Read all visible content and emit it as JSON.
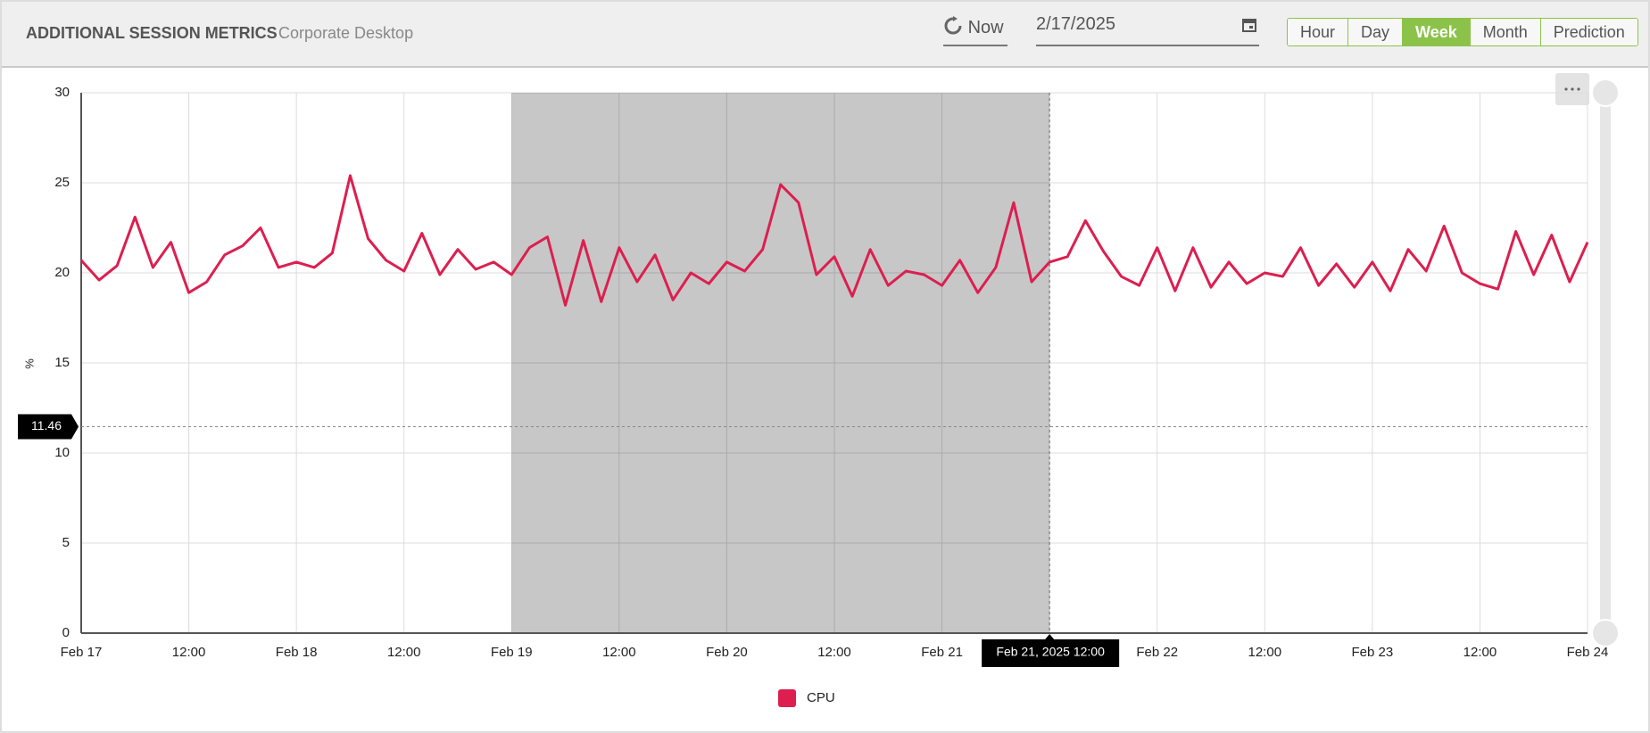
{
  "header": {
    "title": "ADDITIONAL SESSION METRICS",
    "subtitle": "Corporate Desktop",
    "refresh_label": "Now",
    "date": "2/17/2025",
    "range_buttons": [
      "Hour",
      "Day",
      "Week",
      "Month",
      "Prediction"
    ],
    "active_range": "Week"
  },
  "chart_data": {
    "type": "line",
    "y_label": "%",
    "x": [
      0,
      2,
      4,
      6,
      8,
      10,
      12,
      14,
      16,
      18,
      20,
      22,
      24,
      26,
      28,
      30,
      32,
      34,
      36,
      38,
      40,
      42,
      44,
      46,
      48,
      50,
      52,
      54,
      56,
      58,
      60,
      62,
      64,
      66,
      68,
      70,
      72,
      74,
      76,
      78,
      80,
      82,
      84,
      86,
      88,
      90,
      92,
      94,
      96,
      98,
      100,
      102,
      104,
      106,
      108,
      110,
      112,
      114,
      116,
      118,
      120,
      122,
      124,
      126,
      128,
      130,
      132,
      134,
      136,
      138,
      140,
      142,
      144,
      146,
      148,
      150,
      152,
      154,
      156,
      158,
      160,
      162,
      164,
      166,
      168
    ],
    "series": [
      {
        "name": "CPU",
        "color": "#dc1f4f",
        "values": [
          20.7,
          19.6,
          20.4,
          23.1,
          20.3,
          21.7,
          18.9,
          19.5,
          21.0,
          21.5,
          22.5,
          20.3,
          20.6,
          20.3,
          21.1,
          25.4,
          21.9,
          20.7,
          20.1,
          22.2,
          19.9,
          21.3,
          20.2,
          20.6,
          19.9,
          21.4,
          22.0,
          18.2,
          21.8,
          18.4,
          21.4,
          19.5,
          21.0,
          18.5,
          20.0,
          19.4,
          20.6,
          20.1,
          21.3,
          24.9,
          23.9,
          19.9,
          20.9,
          18.7,
          21.3,
          19.3,
          20.1,
          19.9,
          19.3,
          20.7,
          18.9,
          20.3,
          23.9,
          19.5,
          20.6,
          20.9,
          22.9,
          21.2,
          19.8,
          19.3,
          21.4,
          19.0,
          21.4,
          19.2,
          20.6,
          19.4,
          20.0,
          19.8,
          21.4,
          19.3,
          20.5,
          19.2,
          20.6,
          19.0,
          21.3,
          20.1,
          22.6,
          20.0,
          19.4,
          19.1,
          22.3,
          19.9,
          22.1,
          19.5,
          21.7
        ]
      }
    ],
    "xlim": [
      0,
      168
    ],
    "xticks": [
      {
        "value": 0,
        "label": "Feb 17"
      },
      {
        "value": 12,
        "label": "12:00"
      },
      {
        "value": 24,
        "label": "Feb 18"
      },
      {
        "value": 36,
        "label": "12:00"
      },
      {
        "value": 48,
        "label": "Feb 19"
      },
      {
        "value": 60,
        "label": "12:00"
      },
      {
        "value": 72,
        "label": "Feb 20"
      },
      {
        "value": 84,
        "label": "12:00"
      },
      {
        "value": 96,
        "label": "Feb 21"
      },
      {
        "value": 108,
        "label": "12:00"
      },
      {
        "value": 120,
        "label": "Feb 22"
      },
      {
        "value": 132,
        "label": "12:00"
      },
      {
        "value": 144,
        "label": "Feb 23"
      },
      {
        "value": 156,
        "label": "12:00"
      },
      {
        "value": 168,
        "label": "Feb 24"
      }
    ],
    "ylim": [
      0,
      30
    ],
    "yticks": [
      0,
      5,
      10,
      15,
      20,
      25,
      30
    ],
    "grid": true,
    "highlight_range": [
      48,
      108
    ],
    "crosshair_x": {
      "value": 108,
      "label": "Feb 21, 2025 12:00"
    },
    "crosshair_y": 11.46
  }
}
